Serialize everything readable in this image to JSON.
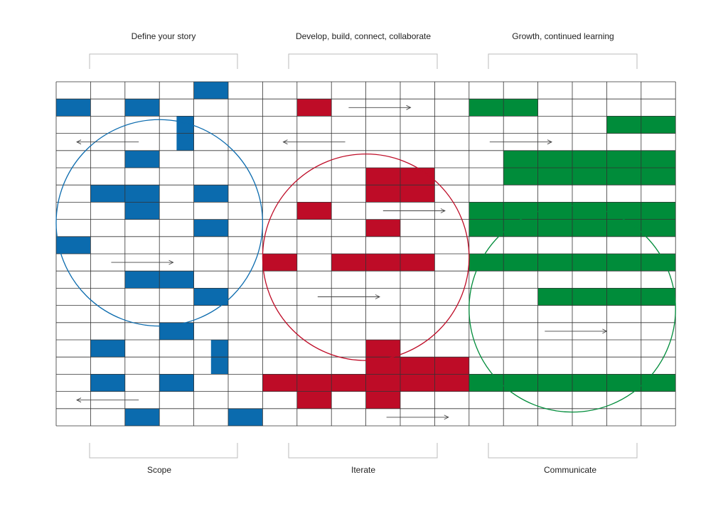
{
  "colors": {
    "blue": "#0B6BAE",
    "red": "#BE0C27",
    "green": "#008C3A",
    "grid": "#333333",
    "bracket": "#bbbbbb"
  },
  "sections": [
    {
      "top_label": "Define your story",
      "bottom_label": "Scope",
      "color_key": "blue"
    },
    {
      "top_label": "Develop, build, connect, collaborate",
      "bottom_label": "Iterate",
      "color_key": "red"
    },
    {
      "top_label": "Growth, continued learning",
      "bottom_label": "Communicate",
      "color_key": "green"
    }
  ],
  "grid": {
    "columns": 18,
    "rows": 20
  },
  "cells": {
    "blue": [
      [
        4,
        0
      ],
      [
        0,
        1
      ],
      [
        2,
        1
      ],
      [
        2,
        4
      ],
      [
        1,
        6
      ],
      [
        2,
        6
      ],
      [
        4,
        6
      ],
      [
        2,
        7
      ],
      [
        4,
        8
      ],
      [
        0,
        9
      ],
      [
        2,
        11
      ],
      [
        3,
        11
      ],
      [
        4,
        12
      ],
      [
        3,
        14
      ],
      [
        1,
        15
      ],
      [
        1,
        17
      ],
      [
        3,
        17
      ],
      [
        2,
        19
      ],
      [
        5,
        19
      ]
    ],
    "blue_half": [
      [
        3.5,
        2,
        0.5,
        2
      ],
      [
        4.5,
        15,
        0.5,
        2
      ]
    ],
    "red": [
      [
        7,
        1
      ],
      [
        9,
        5
      ],
      [
        10,
        5
      ],
      [
        9,
        6
      ],
      [
        10,
        6
      ],
      [
        7,
        7
      ],
      [
        9,
        8
      ],
      [
        6,
        10
      ],
      [
        8,
        10
      ],
      [
        9,
        10
      ],
      [
        10,
        10
      ],
      [
        9,
        15
      ],
      [
        9,
        16
      ],
      [
        10,
        16
      ],
      [
        11,
        16
      ],
      [
        6,
        17
      ],
      [
        7,
        17
      ],
      [
        8,
        17
      ],
      [
        9,
        17
      ],
      [
        10,
        17
      ],
      [
        11,
        17
      ],
      [
        7,
        18
      ],
      [
        9,
        18
      ]
    ],
    "green": [
      [
        12,
        1
      ],
      [
        13,
        1
      ],
      [
        16,
        2
      ],
      [
        17,
        2
      ],
      [
        13,
        4
      ],
      [
        14,
        4
      ],
      [
        15,
        4
      ],
      [
        16,
        4
      ],
      [
        17,
        4
      ],
      [
        13,
        5
      ],
      [
        14,
        5
      ],
      [
        15,
        5
      ],
      [
        16,
        5
      ],
      [
        17,
        5
      ],
      [
        12,
        7
      ],
      [
        13,
        7
      ],
      [
        14,
        7
      ],
      [
        15,
        7
      ],
      [
        16,
        7
      ],
      [
        17,
        7
      ],
      [
        12,
        8
      ],
      [
        13,
        8
      ],
      [
        14,
        8
      ],
      [
        15,
        8
      ],
      [
        16,
        8
      ],
      [
        17,
        8
      ],
      [
        12,
        10
      ],
      [
        13,
        10
      ],
      [
        14,
        10
      ],
      [
        15,
        10
      ],
      [
        16,
        10
      ],
      [
        17,
        10
      ],
      [
        14,
        12
      ],
      [
        15,
        12
      ],
      [
        16,
        12
      ],
      [
        17,
        12
      ],
      [
        12,
        17
      ],
      [
        13,
        17
      ],
      [
        14,
        17
      ],
      [
        15,
        17
      ],
      [
        16,
        17
      ],
      [
        17,
        17
      ]
    ]
  },
  "arrows": [
    {
      "x1": 8.5,
      "x2": 10.3,
      "row": 1.5,
      "dir": "right"
    },
    {
      "x1": 2.4,
      "x2": 0.6,
      "row": 3.5,
      "dir": "left"
    },
    {
      "x1": 8.4,
      "x2": 6.6,
      "row": 3.5,
      "dir": "left"
    },
    {
      "x1": 12.6,
      "x2": 14.4,
      "row": 3.5,
      "dir": "right"
    },
    {
      "x1": 9.5,
      "x2": 11.3,
      "row": 7.5,
      "dir": "right"
    },
    {
      "x1": 1.6,
      "x2": 3.4,
      "row": 10.5,
      "dir": "right"
    },
    {
      "x1": 7.6,
      "x2": 9.4,
      "row": 12.5,
      "dir": "right"
    },
    {
      "x1": 14.2,
      "x2": 16.0,
      "row": 14.5,
      "dir": "right"
    },
    {
      "x1": 2.4,
      "x2": 0.6,
      "row": 18.5,
      "dir": "left"
    },
    {
      "x1": 9.6,
      "x2": 11.4,
      "row": 19.5,
      "dir": "right"
    }
  ],
  "circles": [
    {
      "cx": 3.0,
      "cy": 8.2,
      "r": 3.0,
      "color_key": "blue"
    },
    {
      "cx": 9.0,
      "cy": 10.2,
      "r": 3.0,
      "color_key": "red"
    },
    {
      "cx": 15.0,
      "cy": 13.2,
      "r": 3.0,
      "color_key": "green"
    }
  ]
}
